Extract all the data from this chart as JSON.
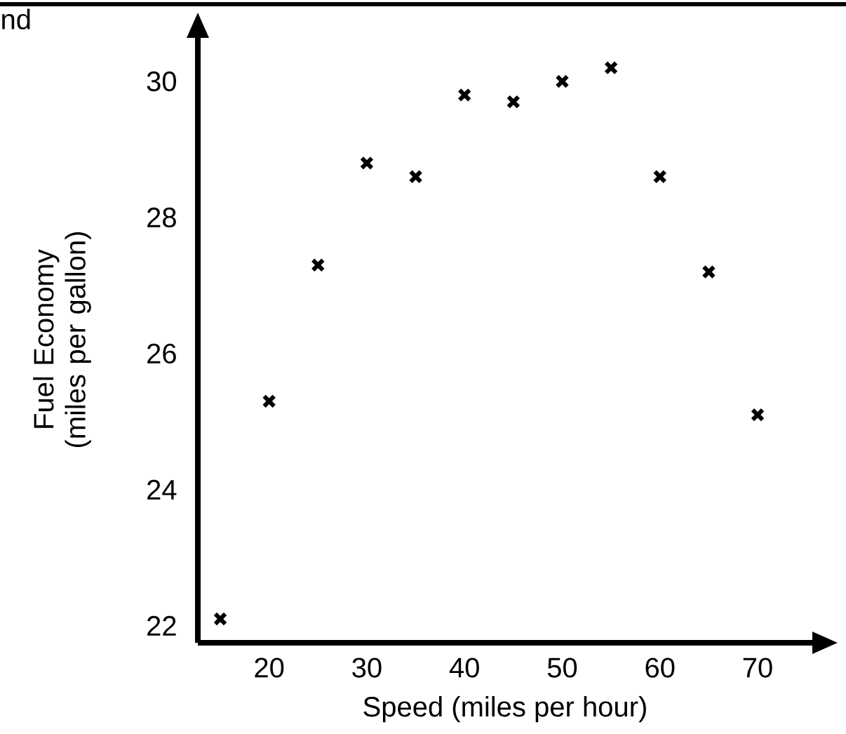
{
  "chart_data": {
    "type": "scatter",
    "xlabel": "Speed (miles per hour)",
    "ylabel": "Fuel Economy (miles per gallon)",
    "annotations": [
      "nd"
    ],
    "x": [
      15,
      20,
      25,
      30,
      35,
      40,
      45,
      50,
      55,
      60,
      65,
      70
    ],
    "series": [
      {
        "color": "#000000",
        "values": [
          22.1,
          25.3,
          27.3,
          28.8,
          28.6,
          29.8,
          29.7,
          30.0,
          30.2,
          28.6,
          27.2,
          25.1
        ]
      }
    ],
    "xlim": [
      12.7,
      75.6
    ],
    "ylim": [
      21.75,
      30.66
    ],
    "xticks": [
      20,
      30,
      40,
      50,
      60,
      70
    ],
    "yticks": [
      22,
      24,
      26,
      28,
      30
    ],
    "marker": "cross",
    "grid": false
  }
}
